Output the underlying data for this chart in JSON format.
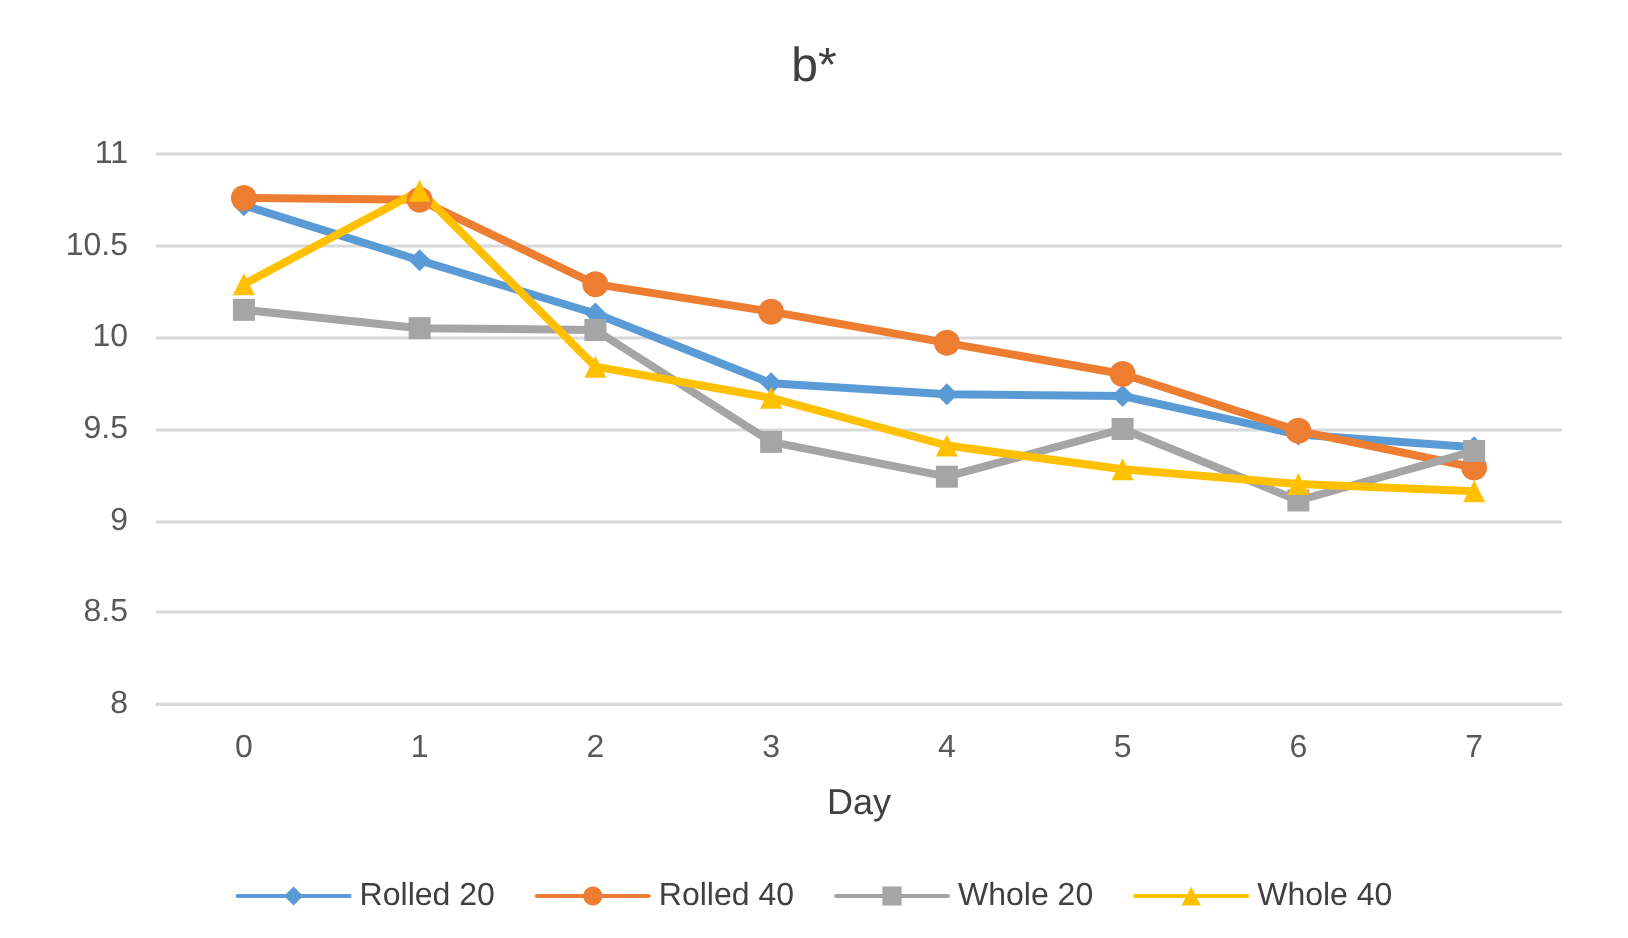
{
  "chart_data": {
    "type": "line",
    "title": "b*",
    "xlabel": "Day",
    "categories": [
      "0",
      "1",
      "2",
      "3",
      "4",
      "5",
      "6",
      "7"
    ],
    "ylim": [
      8,
      11
    ],
    "yticks": [
      8,
      8.5,
      9,
      9.5,
      10,
      10.5,
      11
    ],
    "grid": "y",
    "legend": "bottom",
    "line_style": "solid",
    "series": [
      {
        "name": "Rolled 20",
        "color": "#5b9bd5",
        "marker": "diamond",
        "values": [
          10.72,
          10.42,
          10.13,
          9.75,
          9.69,
          9.68,
          9.47,
          9.4
        ]
      },
      {
        "name": "Rolled 40",
        "color": "#ed7d31",
        "marker": "circle",
        "values": [
          10.76,
          10.75,
          10.29,
          10.14,
          9.97,
          9.8,
          9.49,
          9.29
        ]
      },
      {
        "name": "Whole 20",
        "color": "#a5a5a5",
        "marker": "square",
        "values": [
          10.15,
          10.05,
          10.04,
          9.43,
          9.24,
          9.5,
          9.11,
          9.38
        ]
      },
      {
        "name": "Whole 40",
        "color": "#ffc000",
        "marker": "triangle",
        "values": [
          10.29,
          10.8,
          9.84,
          9.67,
          9.41,
          9.28,
          9.2,
          9.16
        ]
      }
    ]
  }
}
